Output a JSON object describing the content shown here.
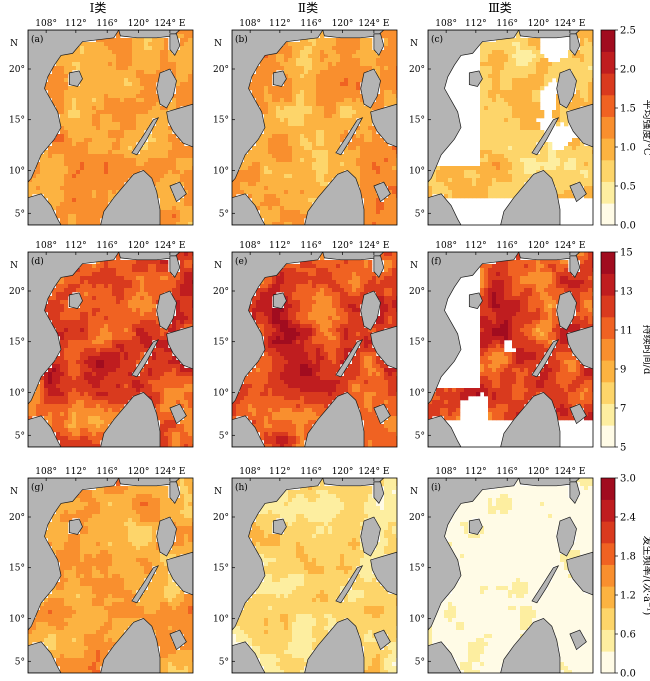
{
  "columns": [
    "Ⅰ类",
    "Ⅱ类",
    "Ⅲ类"
  ],
  "lon_ticks": [
    "108°",
    "112°",
    "116°",
    "120°",
    "124° E"
  ],
  "lat_ticks": [
    "20°",
    "15°",
    "10°",
    "5°"
  ],
  "north_label": "N",
  "panel_labels": [
    "(a)",
    "(b)",
    "(c)",
    "(d)",
    "(e)",
    "(f)",
    "(g)",
    "(h)",
    "(i)"
  ],
  "rows": [
    {
      "variable": "平均强度/°C",
      "ticks": [
        "2.5",
        "2.0",
        "1.5",
        "1.0",
        "0.5",
        "0.0"
      ],
      "range": [
        0,
        2.5
      ],
      "colors": [
        "#fffbe6",
        "#fdeea0",
        "#fdd56a",
        "#fcb341",
        "#f98f2e",
        "#f06222",
        "#d93a1e",
        "#bf1d1f",
        "#a10c1f"
      ]
    },
    {
      "variable": "持续时间/d",
      "ticks": [
        "15",
        "13",
        "11",
        "9",
        "7",
        "5"
      ],
      "range": [
        5,
        15
      ],
      "colors": [
        "#fffbe6",
        "#fdeea0",
        "#fdd56a",
        "#fcb341",
        "#f98f2e",
        "#f06222",
        "#d93a1e",
        "#bf1d1f",
        "#a10c1f"
      ]
    },
    {
      "variable": "发生频率/(次·a⁻¹)",
      "ticks": [
        "3.0",
        "2.4",
        "1.8",
        "1.2",
        "0.6",
        "0.0"
      ],
      "range": [
        0,
        3.0
      ],
      "colors": [
        "#fffbe6",
        "#fdeea0",
        "#fdd56a",
        "#fcb341",
        "#f98f2e",
        "#f06222",
        "#d93a1e",
        "#bf1d1f",
        "#a10c1f"
      ]
    }
  ],
  "map_levels": [
    [
      0.45,
      0.44,
      0.3
    ],
    [
      0.62,
      0.64,
      0.7
    ],
    [
      0.42,
      0.24,
      0.03
    ]
  ],
  "colors": {
    "land": "#b4b4b4",
    "coast": "#1a1a1a",
    "frame": "#000000"
  }
}
